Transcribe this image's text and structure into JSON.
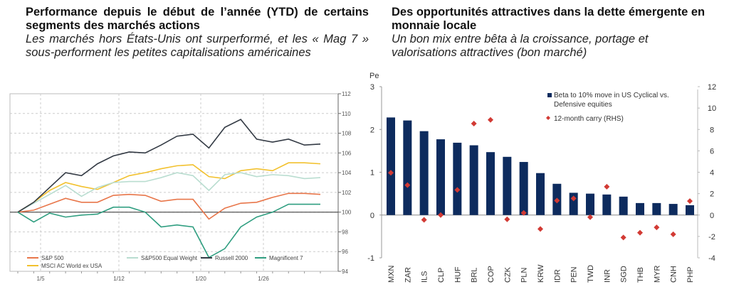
{
  "left": {
    "title": "Performance depuis le début de l’année (YTD) de certains segments des marchés actions",
    "subtitle": "Les marchés hors États-Unis ont surperformé, et les « Mag 7 » sous-performent les petites capitalisations américaines"
  },
  "right": {
    "title": "Des opportunités attractives dans la dette émergente en monnaie locale",
    "subtitle": "Un bon mix entre bêta à la croissance, portage et valorisations attractives (bon marché)"
  },
  "chart_data": [
    {
      "type": "line",
      "x_ticks": [
        "1/5",
        "1/12",
        "1/20",
        "1/26"
      ],
      "ylim": [
        94,
        112
      ],
      "y_ticks": [
        94,
        96,
        98,
        100,
        102,
        104,
        106,
        108,
        110,
        112
      ],
      "y_axis_side": "right",
      "grid": true,
      "legend": "bottom-left",
      "series": [
        {
          "name": "S&P 500",
          "color": "#e8764a",
          "values": [
            100,
            100.2,
            100.8,
            101.4,
            101,
            101,
            101.7,
            101.8,
            101.7,
            101.1,
            101.3,
            101.3,
            99.3,
            100.4,
            100.9,
            101,
            101.5,
            101.9,
            101.9,
            101.8
          ]
        },
        {
          "name": "MSCI AC World ex USA",
          "color": "#f2c12e",
          "values": [
            100,
            101,
            102.2,
            103,
            102.6,
            102.3,
            103,
            103.7,
            104,
            104.4,
            104.7,
            104.8,
            103.6,
            103.4,
            104.2,
            104.4,
            104.2,
            105,
            105,
            104.9
          ]
        },
        {
          "name": "S&P500 Equal Weight",
          "color": "#b9ddd0",
          "values": [
            100,
            100.9,
            101.8,
            102.7,
            101.6,
            102.5,
            103,
            103.1,
            103.1,
            103.5,
            104,
            103.7,
            102.2,
            103.8,
            104,
            103.6,
            103.8,
            103.7,
            103.4,
            103.5
          ]
        },
        {
          "name": "Russell 2000",
          "color": "#333a44",
          "values": [
            100,
            101,
            102.5,
            104,
            103.7,
            104.9,
            105.7,
            106.1,
            106,
            106.8,
            107.7,
            107.9,
            106.5,
            108.6,
            109.4,
            107.4,
            107.1,
            107.4,
            106.8,
            106.9
          ]
        },
        {
          "name": "Magnificent 7",
          "color": "#2f9e80",
          "values": [
            100,
            99,
            99.9,
            99.5,
            99.7,
            99.8,
            100.5,
            100.5,
            100,
            98.5,
            98.7,
            98.5,
            95.4,
            96.3,
            98.5,
            99.5,
            100,
            100.8,
            100.8,
            100.8
          ]
        }
      ]
    },
    {
      "type": "bar",
      "corner_label": "Pe",
      "categories": [
        "MXN",
        "ZAR",
        "ILS",
        "CLP",
        "HUF",
        "BRL",
        "COP",
        "CZK",
        "PLN",
        "KRW",
        "IDR",
        "PEN",
        "TWD",
        "INR",
        "SGD",
        "THB",
        "MYR",
        "CNH",
        "PHP"
      ],
      "ylim": [
        -1,
        3
      ],
      "y_ticks": [
        -1,
        0,
        1,
        2,
        3
      ],
      "y2lim": [
        -4,
        12
      ],
      "y2_ticks": [
        -4,
        -2,
        0,
        2,
        4,
        6,
        8,
        10,
        12
      ],
      "legend": "top-right",
      "series": [
        {
          "name": "Beta to 10% move in US Cyclical vs. Defensive equities",
          "type": "bar",
          "axis": "left",
          "color": "#0d2b5e",
          "values": [
            2.28,
            2.21,
            1.96,
            1.77,
            1.69,
            1.63,
            1.47,
            1.36,
            1.24,
            0.98,
            0.73,
            0.52,
            0.5,
            0.48,
            0.43,
            0.28,
            0.28,
            0.26,
            0.23
          ]
        },
        {
          "name": "12-month carry (RHS)",
          "type": "scatter",
          "marker": "diamond",
          "axis": "right",
          "color": "#d23a34",
          "values": [
            3.95,
            2.8,
            -0.45,
            0,
            2.35,
            8.55,
            8.9,
            -0.4,
            0.2,
            -1.3,
            1.35,
            1.55,
            -0.2,
            2.65,
            -2.1,
            -1.65,
            -1.15,
            -1.8,
            1.3
          ]
        }
      ]
    }
  ]
}
